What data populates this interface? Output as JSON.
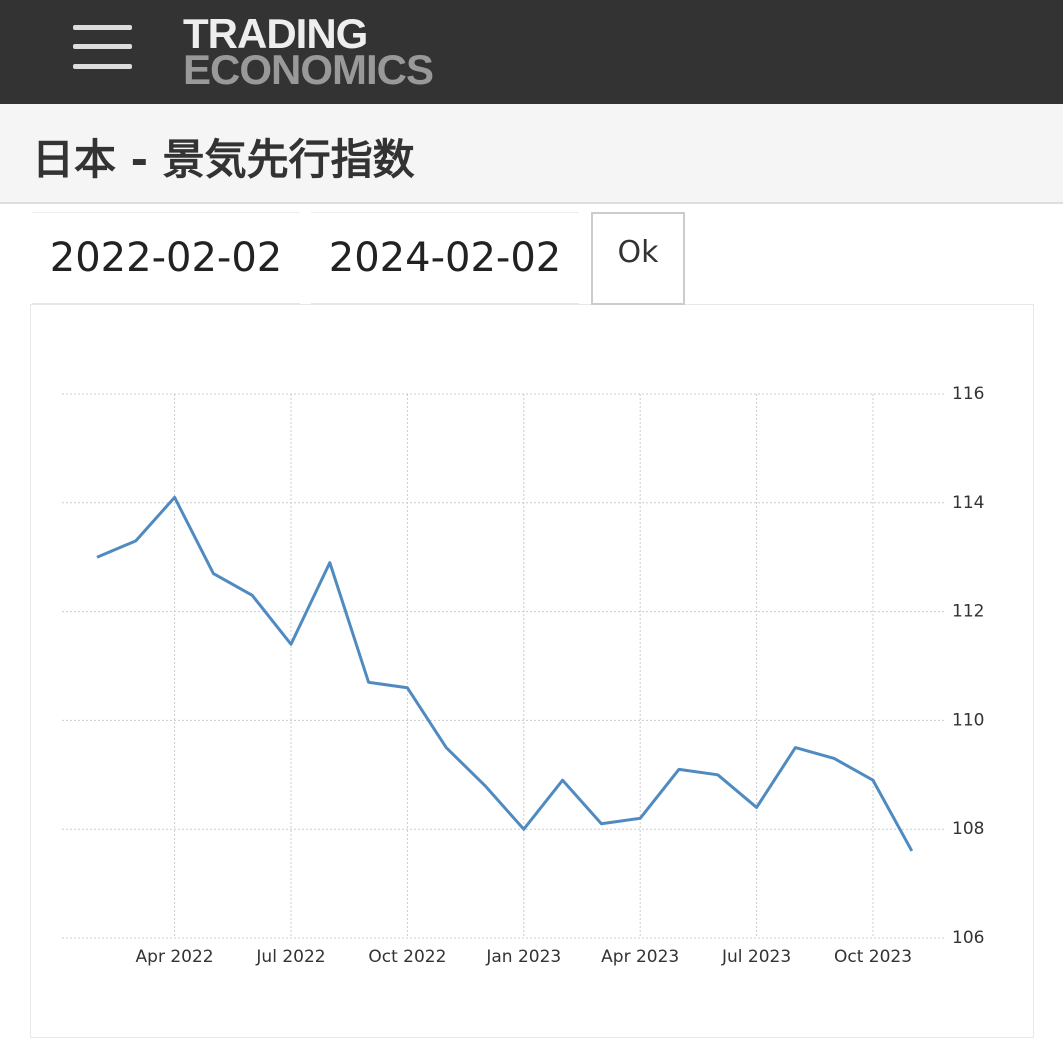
{
  "header": {
    "logo_top": "TRADING",
    "logo_bottom": "ECONOMICS"
  },
  "page_title": "日本 - 景気先行指数",
  "form": {
    "start_date": "2022-02-02",
    "end_date": "2024-02-02",
    "button": "Ok"
  },
  "chart_data": {
    "type": "line",
    "categories": [
      null,
      null,
      "Apr 2022",
      null,
      null,
      "Jul 2022",
      null,
      null,
      "Oct 2022",
      null,
      null,
      "Jan 2023",
      null,
      null,
      "Apr 2023",
      null,
      null,
      "Jul 2023",
      null,
      null,
      "Oct 2023",
      null
    ],
    "values": [
      113.0,
      113.3,
      114.1,
      112.7,
      112.3,
      111.4,
      112.9,
      110.7,
      110.6,
      109.5,
      108.8,
      108.0,
      108.9,
      108.1,
      108.2,
      109.1,
      109.0,
      108.4,
      109.5,
      109.3,
      108.9,
      107.6
    ],
    "color": "#4f8bc0",
    "ylim": [
      106,
      116
    ],
    "yticks": [
      106,
      108,
      110,
      112,
      114,
      116
    ],
    "grid": true
  }
}
